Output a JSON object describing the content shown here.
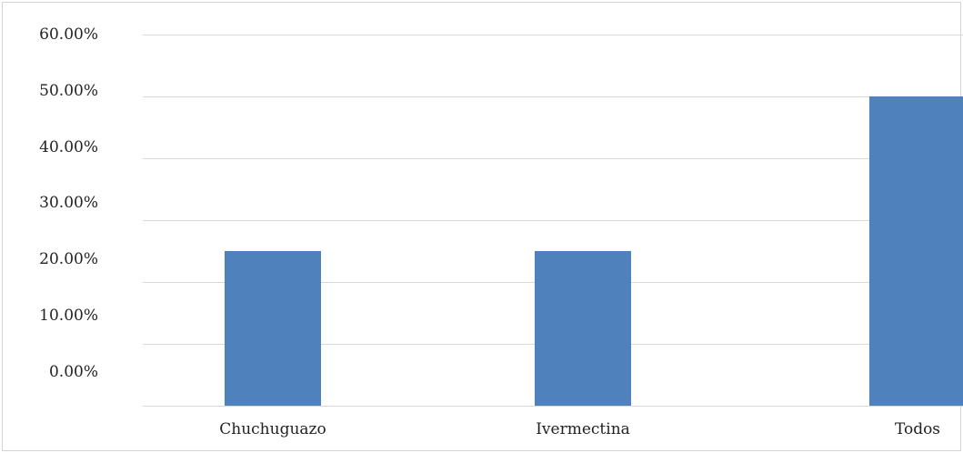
{
  "chart_data": {
    "type": "bar",
    "categories": [
      "Chuchuguazo",
      "Ivermectina",
      "Todos"
    ],
    "values": [
      0.25,
      0.25,
      0.5
    ],
    "y_ticks": [
      "0.00%",
      "10.00%",
      "20.00%",
      "30.00%",
      "40.00%",
      "50.00%",
      "60.00%"
    ],
    "ylim": [
      0,
      0.6
    ],
    "grid": true,
    "legend": "none",
    "colors": {
      "bar": "#4f81bd",
      "grid": "#d9d9d9",
      "border": "#d4d4d4"
    }
  }
}
